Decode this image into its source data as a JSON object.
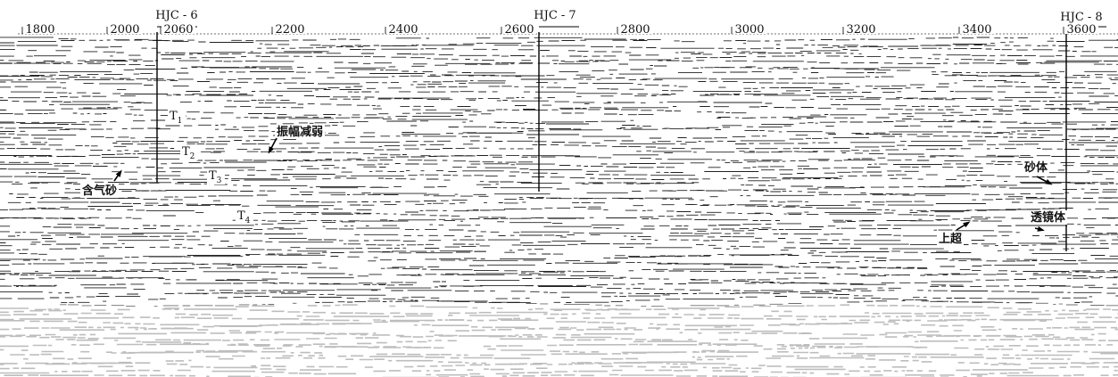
{
  "trace_labels": [
    "1800",
    "2000",
    "2060",
    "2200",
    "2400",
    "2600",
    "2800",
    "3000",
    "3200",
    "3400",
    "3600"
  ],
  "wells": [
    "HJC - 6",
    "HJC - 7",
    "HJC - 8"
  ],
  "horizons": [
    {
      "base": "T",
      "sub": "1"
    },
    {
      "base": "T",
      "sub": "2"
    },
    {
      "base": "T",
      "sub": "3"
    },
    {
      "base": "T",
      "sub": "4"
    }
  ],
  "annotations": [
    "振幅减弱",
    "含气砂",
    "砂体",
    "透镜体",
    "上超"
  ]
}
